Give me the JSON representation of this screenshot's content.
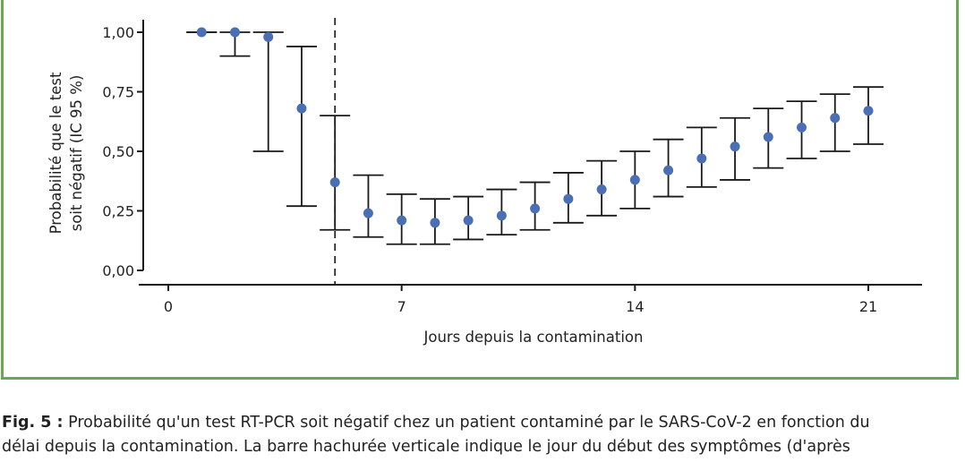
{
  "chart_data": {
    "type": "scatter",
    "xlabel": "Jours depuis la contamination",
    "ylabel_line1": "Probabilité que le test",
    "ylabel_line2": "soit négatif (IC 95 %)",
    "x_ticks": [
      "0",
      "7",
      "14",
      "21"
    ],
    "y_ticks": [
      "0,00",
      "0,25",
      "0,50",
      "0,75",
      "1,00"
    ],
    "xlim": [
      -0.8,
      22.5
    ],
    "ylim": [
      0,
      1
    ],
    "symptom_onset_day": 5,
    "colors": {
      "point": "#4a6fb5",
      "errorbar": "#1a1a1a",
      "axis": "#1a1a1a"
    },
    "points": [
      {
        "x": 1,
        "y": 1.0,
        "low": 1.0,
        "high": 1.0
      },
      {
        "x": 2,
        "y": 1.0,
        "low": 0.9,
        "high": 1.0
      },
      {
        "x": 3,
        "y": 0.98,
        "low": 0.5,
        "high": 1.0
      },
      {
        "x": 4,
        "y": 0.68,
        "low": 0.27,
        "high": 0.94
      },
      {
        "x": 5,
        "y": 0.37,
        "low": 0.17,
        "high": 0.65
      },
      {
        "x": 6,
        "y": 0.24,
        "low": 0.14,
        "high": 0.4
      },
      {
        "x": 7,
        "y": 0.21,
        "low": 0.11,
        "high": 0.32
      },
      {
        "x": 8,
        "y": 0.2,
        "low": 0.11,
        "high": 0.3
      },
      {
        "x": 9,
        "y": 0.21,
        "low": 0.13,
        "high": 0.31
      },
      {
        "x": 10,
        "y": 0.23,
        "low": 0.15,
        "high": 0.34
      },
      {
        "x": 11,
        "y": 0.26,
        "low": 0.17,
        "high": 0.37
      },
      {
        "x": 12,
        "y": 0.3,
        "low": 0.2,
        "high": 0.41
      },
      {
        "x": 13,
        "y": 0.34,
        "low": 0.23,
        "high": 0.46
      },
      {
        "x": 14,
        "y": 0.38,
        "low": 0.26,
        "high": 0.5
      },
      {
        "x": 15,
        "y": 0.42,
        "low": 0.31,
        "high": 0.55
      },
      {
        "x": 16,
        "y": 0.47,
        "low": 0.35,
        "high": 0.6
      },
      {
        "x": 17,
        "y": 0.52,
        "low": 0.38,
        "high": 0.64
      },
      {
        "x": 18,
        "y": 0.56,
        "low": 0.43,
        "high": 0.68
      },
      {
        "x": 19,
        "y": 0.6,
        "low": 0.47,
        "high": 0.71
      },
      {
        "x": 20,
        "y": 0.64,
        "low": 0.5,
        "high": 0.74
      },
      {
        "x": 21,
        "y": 0.67,
        "low": 0.53,
        "high": 0.77
      }
    ]
  },
  "caption": {
    "label": "Fig. 5 :",
    "line1": "Probabilité qu'un test RT-PCR soit négatif chez un patient contaminé par le SARS-CoV-2 en fonction du",
    "line2": "délai depuis la contamination. La barre hachurée verticale indique le jour du début des symptômes (d'après"
  }
}
